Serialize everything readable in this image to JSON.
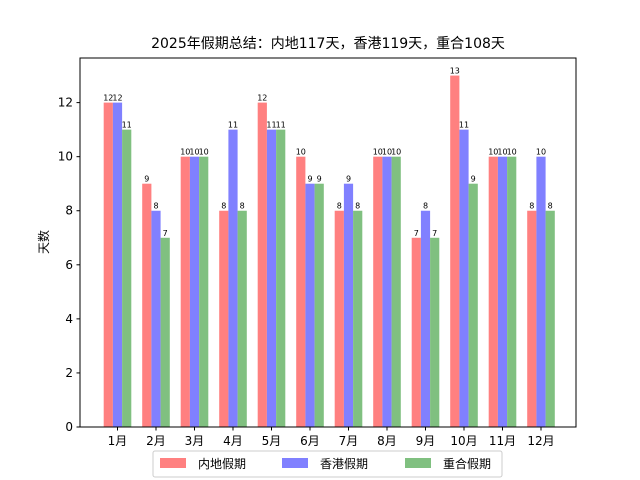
{
  "chart_data": {
    "type": "bar",
    "title": "2025年假期总结：内地117天，香港119天，重合108天",
    "xlabel": "",
    "ylabel": "天数",
    "categories": [
      "1月",
      "2月",
      "3月",
      "4月",
      "5月",
      "6月",
      "7月",
      "8月",
      "9月",
      "10月",
      "11月",
      "12月"
    ],
    "series": [
      {
        "name": "内地假期",
        "color": "#ff8080",
        "values": [
          12,
          9,
          10,
          8,
          12,
          10,
          8,
          10,
          7,
          13,
          10,
          8
        ]
      },
      {
        "name": "香港假期",
        "color": "#8080ff",
        "values": [
          12,
          8,
          10,
          11,
          11,
          9,
          9,
          10,
          8,
          11,
          10,
          10
        ]
      },
      {
        "name": "重合假期",
        "color": "#80c080",
        "values": [
          11,
          7,
          10,
          8,
          11,
          9,
          8,
          10,
          7,
          9,
          10,
          8
        ]
      }
    ],
    "ylim": [
      0,
      13.65
    ],
    "yticks": [
      0,
      2,
      4,
      6,
      8,
      10,
      12
    ],
    "grid": false,
    "legend_position": "bottom-center"
  }
}
